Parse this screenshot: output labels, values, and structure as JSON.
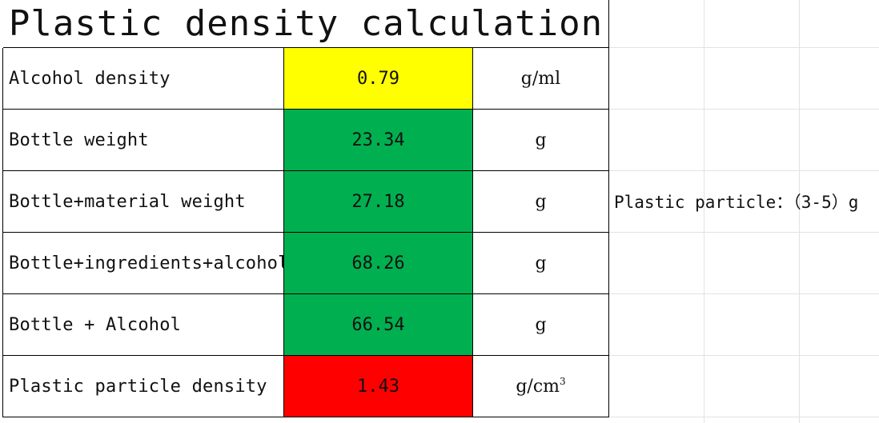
{
  "title": "Plastic density calculation",
  "rows": [
    {
      "label": "Alcohol density",
      "value": "0.79",
      "unit": "g/ml",
      "color": "#ffff00"
    },
    {
      "label": "Bottle weight",
      "value": "23.34",
      "unit": "g",
      "color": "#00b050"
    },
    {
      "label": "Bottle+material weight",
      "value": "27.18",
      "unit": "g",
      "color": "#00b050"
    },
    {
      "label": "Bottle+ingredients+alcohol",
      "value": "68.26",
      "unit": "g",
      "color": "#00b050"
    },
    {
      "label": "Bottle + Alcohol",
      "value": "66.54",
      "unit": "g",
      "color": "#00b050"
    },
    {
      "label": "Plastic particle density",
      "value": "1.43",
      "unit_base": "g/cm",
      "unit_sup": "3",
      "color": "#ff0000"
    }
  ],
  "note": "Plastic particle：（3-5）g"
}
